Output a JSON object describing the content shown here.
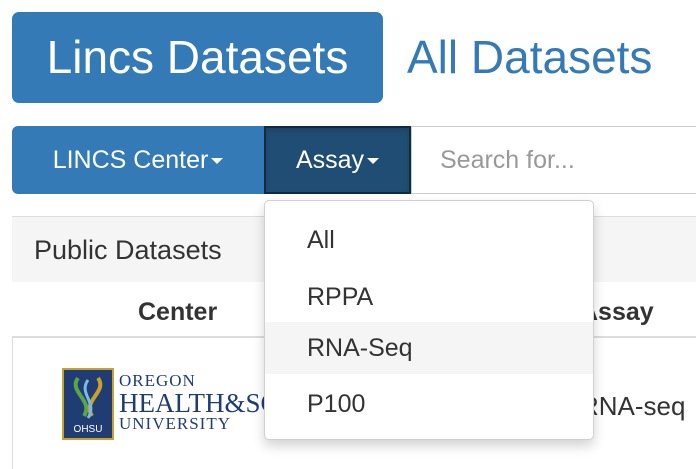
{
  "nav": {
    "active_pill": "Lincs Datasets",
    "other_pill": "All Datasets"
  },
  "toolbar": {
    "center_button": "LINCS Center",
    "assay_button": "Assay",
    "search_placeholder": "Search for..."
  },
  "panel": {
    "title": "Public Datasets"
  },
  "table": {
    "columns": [
      "Center",
      "Assay"
    ],
    "rows": [
      {
        "center_logo": "OHSU logo",
        "assay": "RNA-seq"
      }
    ]
  },
  "logo": {
    "line1": "OREGON",
    "line2": "HEALTH&SCIENCE",
    "line3": "UNIVERSITY",
    "badge": "OHSU"
  },
  "dropdown": {
    "items": [
      "All",
      "RPPA",
      "RNA-Seq",
      "P100"
    ],
    "hovered_index": 2
  },
  "colors": {
    "primary": "#337ab7",
    "primary_active": "#204d74",
    "dropdown_hover": "#f5f5f5"
  }
}
